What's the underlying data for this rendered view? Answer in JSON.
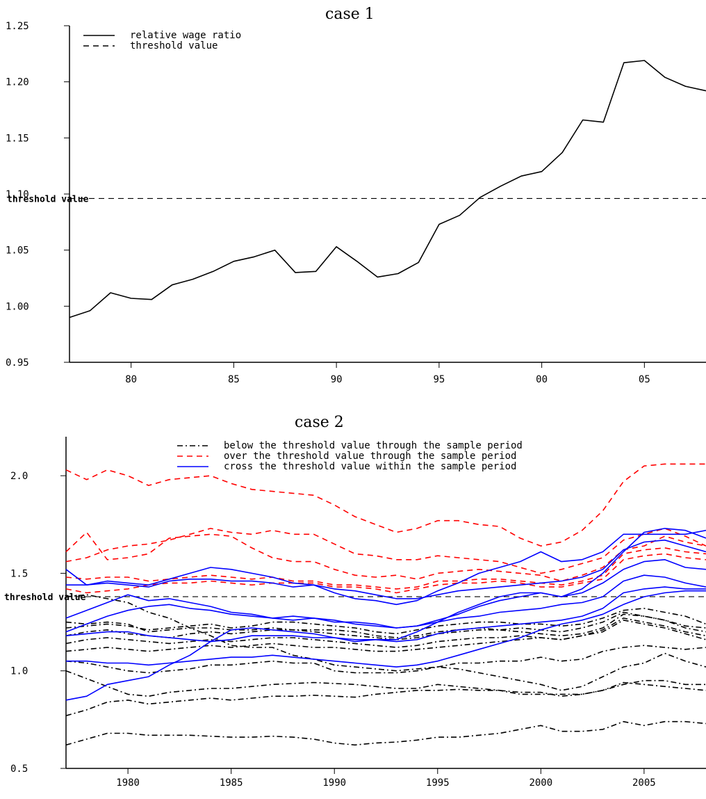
{
  "chart_data": [
    {
      "type": "line",
      "title": "case 1",
      "xlim": [
        1977,
        2008
      ],
      "ylim": [
        0.95,
        1.25
      ],
      "yticks": [
        "1.25",
        "1.20",
        "1.15",
        "1.10",
        "1.05",
        "1.00",
        "0.95"
      ],
      "ytick_values": [
        1.25,
        1.2,
        1.15,
        1.1,
        1.05,
        1.0,
        0.95
      ],
      "xticks": [
        "80",
        "85",
        "90",
        "95",
        "00",
        "05"
      ],
      "xtick_values": [
        1980,
        1985,
        1990,
        1995,
        2000,
        2005
      ],
      "threshold": 1.096,
      "threshold_label": "threshold value",
      "legend": [
        "relative wage ratio",
        "threshold value"
      ],
      "legend_position": "top-left",
      "x": [
        1977,
        1978,
        1979,
        1980,
        1981,
        1982,
        1983,
        1984,
        1985,
        1986,
        1987,
        1988,
        1989,
        1990,
        1991,
        1992,
        1993,
        1994,
        1995,
        1996,
        1997,
        1998,
        1999,
        2000,
        2001,
        2002,
        2003,
        2004,
        2005,
        2006,
        2007,
        2008
      ],
      "series": [
        {
          "values": [
            0.99,
            0.996,
            1.012,
            1.007,
            1.006,
            1.019,
            1.024,
            1.031,
            1.04,
            1.044,
            1.05,
            1.03,
            1.031,
            1.053,
            1.04,
            1.026,
            1.029,
            1.039,
            1.073,
            1.081,
            1.097,
            1.107,
            1.116,
            1.12,
            1.137,
            1.166,
            1.164,
            1.217,
            1.219,
            1.204,
            1.196,
            1.192
          ]
        }
      ]
    },
    {
      "type": "line",
      "title": "case 2",
      "xlim": [
        1977,
        2008
      ],
      "ylim": [
        0.5,
        2.2
      ],
      "yticks": [
        "2.0",
        "1.5",
        "1.0",
        "0.5"
      ],
      "ytick_values": [
        2.0,
        1.5,
        1.0,
        0.5
      ],
      "xticks": [
        "1980",
        "1985",
        "1990",
        "1995",
        "2000",
        "2005"
      ],
      "xtick_values": [
        1980,
        1985,
        1990,
        1995,
        2000,
        2005
      ],
      "threshold": 1.38,
      "threshold_label": "threshold value",
      "legend": [
        "below the threshold value through the sample period",
        "over the threshold value through the sample period",
        "cross the threshold value within the sample period"
      ],
      "legend_position": "top-right",
      "x": [
        1977,
        1978,
        1979,
        1980,
        1981,
        1982,
        1983,
        1984,
        1985,
        1986,
        1987,
        1988,
        1989,
        1990,
        1991,
        1992,
        1993,
        1994,
        1995,
        1996,
        1997,
        1998,
        1999,
        2000,
        2001,
        2002,
        2003,
        2004,
        2005,
        2006,
        2007,
        2008
      ],
      "groups": [
        {
          "name": "below the threshold value through the sample period",
          "color": "#000000",
          "style": "dashdot",
          "series": [
            [
              0.62,
              0.65,
              0.68,
              0.68,
              0.67,
              0.67,
              0.67,
              0.665,
              0.66,
              0.66,
              0.665,
              0.66,
              0.65,
              0.63,
              0.62,
              0.63,
              0.635,
              0.645,
              0.66,
              0.66,
              0.67,
              0.68,
              0.7,
              0.72,
              0.69,
              0.69,
              0.7,
              0.74,
              0.72,
              0.74,
              0.74,
              0.73
            ],
            [
              0.77,
              0.8,
              0.84,
              0.85,
              0.83,
              0.84,
              0.85,
              0.86,
              0.85,
              0.86,
              0.87,
              0.87,
              0.875,
              0.87,
              0.865,
              0.88,
              0.89,
              0.9,
              0.9,
              0.905,
              0.9,
              0.9,
              0.89,
              0.89,
              0.87,
              0.88,
              0.9,
              0.94,
              0.93,
              0.92,
              0.91,
              0.9
            ],
            [
              1.0,
              0.96,
              0.92,
              0.88,
              0.87,
              0.89,
              0.9,
              0.91,
              0.91,
              0.92,
              0.93,
              0.935,
              0.94,
              0.935,
              0.93,
              0.92,
              0.91,
              0.91,
              0.93,
              0.92,
              0.91,
              0.9,
              0.88,
              0.88,
              0.88,
              0.88,
              0.9,
              0.93,
              0.95,
              0.95,
              0.93,
              0.93
            ],
            [
              1.05,
              1.04,
              1.02,
              1.0,
              0.99,
              1.0,
              1.01,
              1.03,
              1.03,
              1.04,
              1.05,
              1.04,
              1.04,
              1.0,
              0.99,
              0.99,
              0.99,
              1.0,
              1.02,
              1.04,
              1.04,
              1.05,
              1.05,
              1.07,
              1.05,
              1.06,
              1.1,
              1.12,
              1.13,
              1.12,
              1.11,
              1.12
            ],
            [
              1.1,
              1.11,
              1.12,
              1.11,
              1.1,
              1.11,
              1.12,
              1.13,
              1.12,
              1.13,
              1.14,
              1.13,
              1.12,
              1.12,
              1.11,
              1.1,
              1.1,
              1.11,
              1.12,
              1.13,
              1.14,
              1.15,
              1.16,
              1.17,
              1.16,
              1.18,
              1.2,
              1.26,
              1.24,
              1.22,
              1.19,
              1.16
            ],
            [
              1.14,
              1.16,
              1.17,
              1.16,
              1.15,
              1.14,
              1.15,
              1.16,
              1.15,
              1.16,
              1.17,
              1.17,
              1.16,
              1.15,
              1.14,
              1.13,
              1.12,
              1.13,
              1.15,
              1.16,
              1.17,
              1.17,
              1.18,
              1.17,
              1.16,
              1.18,
              1.21,
              1.27,
              1.25,
              1.23,
              1.2,
              1.18
            ],
            [
              1.18,
              1.2,
              1.21,
              1.19,
              1.18,
              1.17,
              1.19,
              1.2,
              1.19,
              1.2,
              1.21,
              1.21,
              1.2,
              1.19,
              1.18,
              1.17,
              1.16,
              1.17,
              1.19,
              1.2,
              1.21,
              1.21,
              1.22,
              1.21,
              1.2,
              1.22,
              1.25,
              1.3,
              1.28,
              1.26,
              1.23,
              1.22
            ],
            [
              1.22,
              1.23,
              1.24,
              1.23,
              1.21,
              1.22,
              1.23,
              1.24,
              1.22,
              1.23,
              1.25,
              1.25,
              1.24,
              1.23,
              1.22,
              1.2,
              1.19,
              1.21,
              1.23,
              1.24,
              1.25,
              1.25,
              1.24,
              1.24,
              1.23,
              1.24,
              1.27,
              1.31,
              1.32,
              1.3,
              1.28,
              1.24
            ],
            [
              1.25,
              1.24,
              1.25,
              1.24,
              1.2,
              1.21,
              1.22,
              1.22,
              1.21,
              1.21,
              1.22,
              1.21,
              1.21,
              1.21,
              1.2,
              1.18,
              1.17,
              1.18,
              1.2,
              1.21,
              1.22,
              1.21,
              1.2,
              1.19,
              1.18,
              1.19,
              1.22,
              1.29,
              1.28,
              1.26,
              1.22,
              1.2
            ],
            [
              1.38,
              1.39,
              1.37,
              1.35,
              1.3,
              1.27,
              1.22,
              1.18,
              1.13,
              1.12,
              1.12,
              1.08,
              1.06,
              1.03,
              1.02,
              1.01,
              1.0,
              1.01,
              1.02,
              1.01,
              0.99,
              0.97,
              0.95,
              0.93,
              0.9,
              0.92,
              0.97,
              1.02,
              1.04,
              1.09,
              1.05,
              1.02
            ]
          ]
        },
        {
          "name": "over the threshold value through the sample period",
          "color": "#ff0000",
          "style": "dash",
          "series": [
            [
              2.03,
              1.98,
              2.03,
              2.0,
              1.95,
              1.98,
              1.99,
              2.0,
              1.96,
              1.93,
              1.92,
              1.91,
              1.9,
              1.85,
              1.79,
              1.75,
              1.71,
              1.73,
              1.77,
              1.77,
              1.75,
              1.74,
              1.68,
              1.64,
              1.66,
              1.72,
              1.82,
              1.97,
              2.05,
              2.06,
              2.06,
              2.06
            ],
            [
              1.56,
              1.58,
              1.62,
              1.64,
              1.65,
              1.67,
              1.7,
              1.73,
              1.71,
              1.7,
              1.72,
              1.7,
              1.7,
              1.65,
              1.6,
              1.59,
              1.57,
              1.57,
              1.59,
              1.58,
              1.57,
              1.56,
              1.53,
              1.5,
              1.52,
              1.55,
              1.58,
              1.67,
              1.7,
              1.73,
              1.69,
              1.64
            ],
            [
              1.61,
              1.71,
              1.57,
              1.58,
              1.6,
              1.68,
              1.69,
              1.7,
              1.69,
              1.63,
              1.58,
              1.56,
              1.56,
              1.52,
              1.49,
              1.48,
              1.49,
              1.47,
              1.5,
              1.51,
              1.52,
              1.51,
              1.5,
              1.49,
              1.46,
              1.49,
              1.53,
              1.62,
              1.64,
              1.69,
              1.66,
              1.64
            ],
            [
              1.48,
              1.47,
              1.48,
              1.48,
              1.46,
              1.47,
              1.48,
              1.49,
              1.48,
              1.47,
              1.48,
              1.46,
              1.46,
              1.44,
              1.44,
              1.43,
              1.42,
              1.43,
              1.46,
              1.46,
              1.47,
              1.47,
              1.46,
              1.45,
              1.44,
              1.46,
              1.49,
              1.6,
              1.62,
              1.63,
              1.61,
              1.6
            ],
            [
              1.42,
              1.4,
              1.41,
              1.42,
              1.44,
              1.45,
              1.45,
              1.46,
              1.45,
              1.44,
              1.45,
              1.45,
              1.45,
              1.43,
              1.43,
              1.42,
              1.4,
              1.42,
              1.44,
              1.45,
              1.45,
              1.46,
              1.45,
              1.43,
              1.43,
              1.45,
              1.47,
              1.57,
              1.59,
              1.6,
              1.58,
              1.57
            ]
          ]
        },
        {
          "name": "cross the threshold value within the sample period",
          "color": "#0000ff",
          "style": "solid",
          "series": [
            [
              1.52,
              1.44,
              1.46,
              1.45,
              1.44,
              1.47,
              1.5,
              1.53,
              1.52,
              1.5,
              1.48,
              1.45,
              1.44,
              1.4,
              1.37,
              1.36,
              1.34,
              1.36,
              1.41,
              1.45,
              1.5,
              1.53,
              1.56,
              1.61,
              1.56,
              1.57,
              1.61,
              1.7,
              1.7,
              1.7,
              1.7,
              1.72
            ],
            [
              1.27,
              1.31,
              1.35,
              1.39,
              1.36,
              1.37,
              1.35,
              1.33,
              1.3,
              1.29,
              1.27,
              1.26,
              1.27,
              1.26,
              1.24,
              1.23,
              1.22,
              1.23,
              1.26,
              1.29,
              1.33,
              1.36,
              1.38,
              1.4,
              1.38,
              1.4,
              1.45,
              1.52,
              1.56,
              1.57,
              1.53,
              1.52
            ],
            [
              1.2,
              1.24,
              1.28,
              1.31,
              1.33,
              1.34,
              1.32,
              1.31,
              1.29,
              1.28,
              1.27,
              1.28,
              1.27,
              1.25,
              1.25,
              1.24,
              1.22,
              1.23,
              1.25,
              1.27,
              1.28,
              1.3,
              1.31,
              1.32,
              1.34,
              1.35,
              1.38,
              1.46,
              1.49,
              1.48,
              1.45,
              1.43
            ],
            [
              1.18,
              1.19,
              1.2,
              1.2,
              1.18,
              1.17,
              1.16,
              1.15,
              1.16,
              1.18,
              1.18,
              1.18,
              1.17,
              1.17,
              1.16,
              1.16,
              1.15,
              1.16,
              1.19,
              1.21,
              1.22,
              1.23,
              1.24,
              1.25,
              1.26,
              1.28,
              1.32,
              1.4,
              1.42,
              1.43,
              1.42,
              1.42
            ],
            [
              1.05,
              1.05,
              1.04,
              1.04,
              1.03,
              1.04,
              1.05,
              1.06,
              1.07,
              1.07,
              1.08,
              1.07,
              1.06,
              1.05,
              1.04,
              1.03,
              1.02,
              1.03,
              1.05,
              1.08,
              1.11,
              1.14,
              1.17,
              1.21,
              1.24,
              1.26,
              1.29,
              1.34,
              1.38,
              1.4,
              1.41,
              1.41
            ],
            [
              0.85,
              0.87,
              0.93,
              0.95,
              0.97,
              1.03,
              1.08,
              1.15,
              1.21,
              1.22,
              1.21,
              1.2,
              1.19,
              1.17,
              1.15,
              1.16,
              1.16,
              1.2,
              1.25,
              1.3,
              1.34,
              1.38,
              1.4,
              1.4,
              1.38,
              1.42,
              1.5,
              1.61,
              1.71,
              1.73,
              1.72,
              1.68
            ],
            [
              1.44,
              1.44,
              1.45,
              1.44,
              1.43,
              1.46,
              1.47,
              1.47,
              1.46,
              1.46,
              1.45,
              1.43,
              1.44,
              1.42,
              1.41,
              1.39,
              1.37,
              1.37,
              1.39,
              1.41,
              1.42,
              1.43,
              1.44,
              1.45,
              1.46,
              1.48,
              1.52,
              1.62,
              1.66,
              1.67,
              1.64,
              1.61
            ]
          ]
        }
      ]
    }
  ]
}
